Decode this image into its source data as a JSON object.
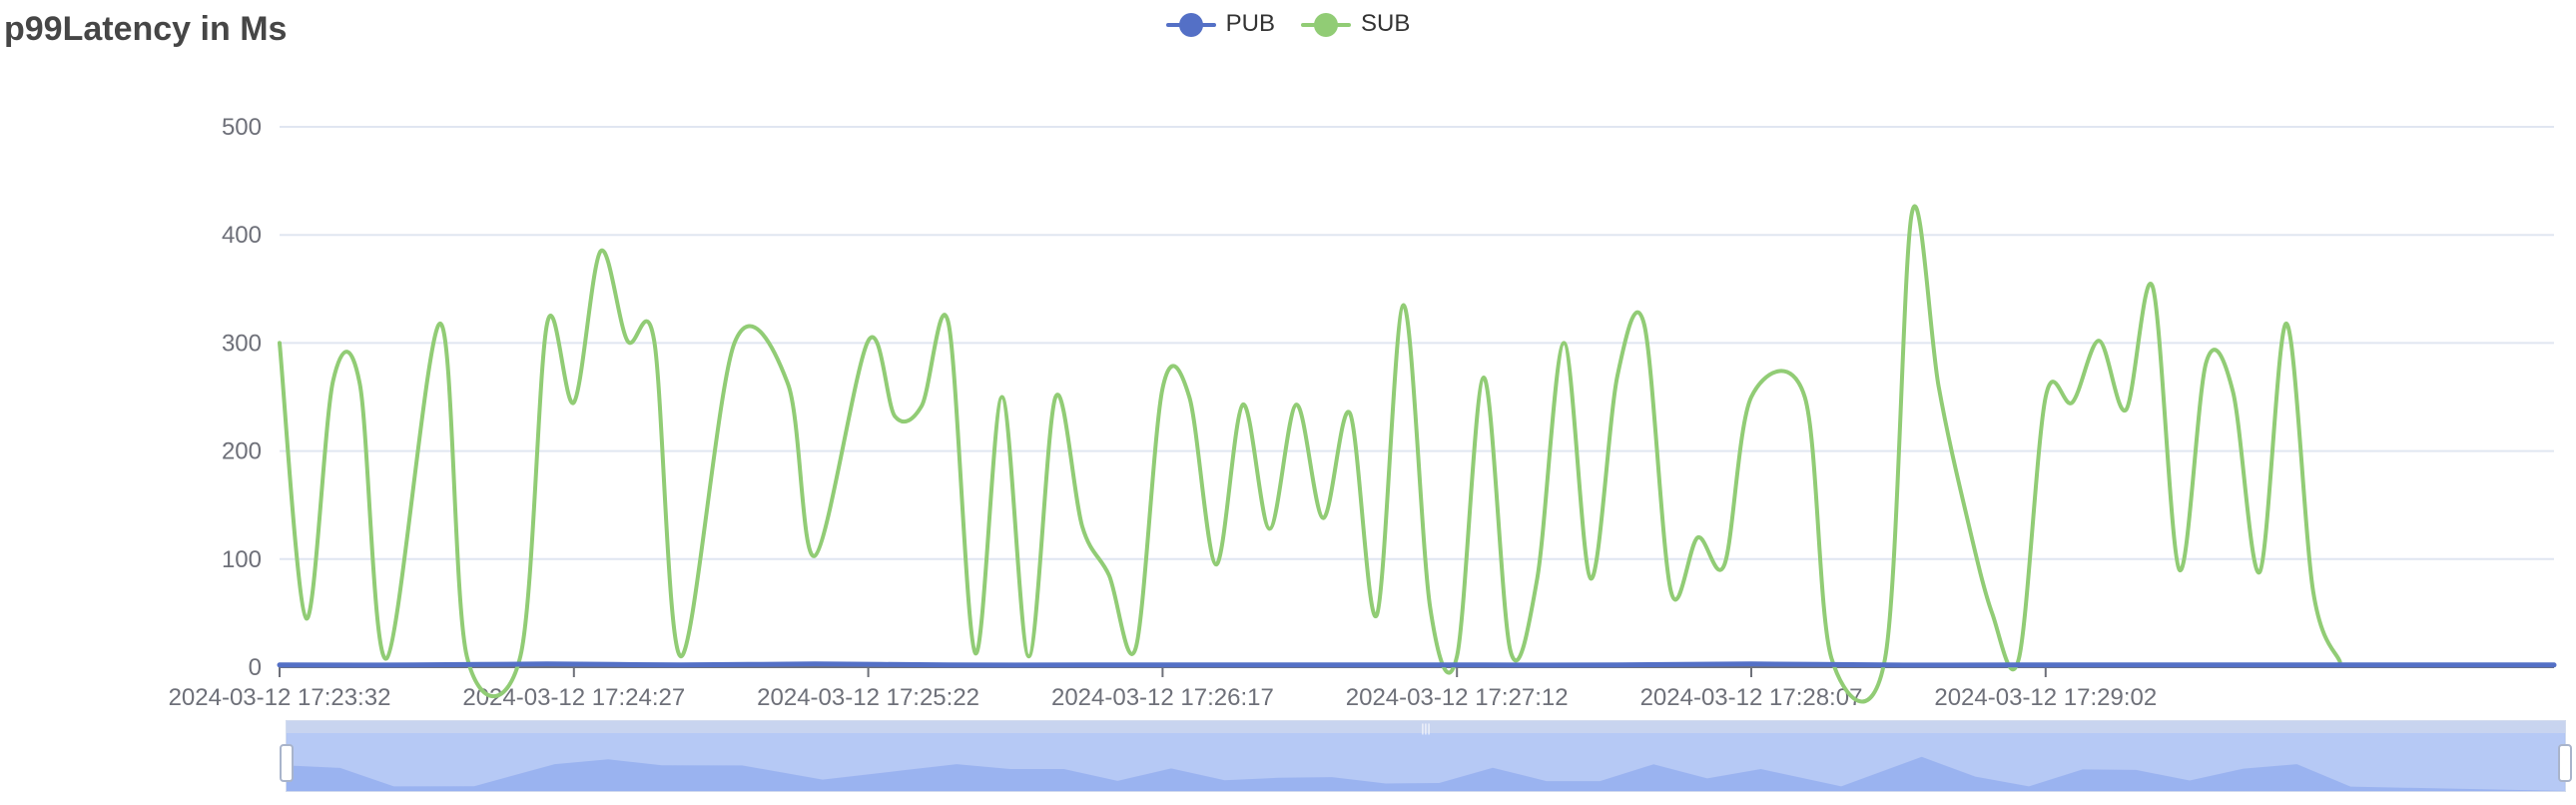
{
  "chart_data": {
    "type": "line",
    "title": "p99Latency in Ms",
    "xlabel": "",
    "ylabel": "",
    "ylim": [
      0,
      500
    ],
    "yticks": [
      0,
      100,
      200,
      300,
      400,
      500
    ],
    "x_tick_labels": [
      "2024-03-12 17:23:32",
      "2024-03-12 17:24:27",
      "2024-03-12 17:25:22",
      "2024-03-12 17:26:17",
      "2024-03-12 17:27:12",
      "2024-03-12 17:28:07",
      "2024-03-12 17:29:02"
    ],
    "x_range_seconds": [
      0,
      425
    ],
    "x_tick_interval_seconds": 55,
    "grid": true,
    "legend_position": "top-center",
    "data_zoom_slider": true,
    "series": [
      {
        "name": "PUB",
        "color": "#5470c6",
        "points": [
          [
            0,
            2
          ],
          [
            25,
            2
          ],
          [
            50,
            3
          ],
          [
            75,
            2
          ],
          [
            100,
            3
          ],
          [
            125,
            2
          ],
          [
            150,
            2
          ],
          [
            175,
            2
          ],
          [
            200,
            2
          ],
          [
            225,
            2
          ],
          [
            250,
            2
          ],
          [
            275,
            3
          ],
          [
            300,
            2
          ],
          [
            325,
            2
          ],
          [
            350,
            2
          ],
          [
            375,
            2
          ],
          [
            400,
            2
          ],
          [
            425,
            2
          ]
        ]
      },
      {
        "name": "SUB",
        "color": "#91cc75",
        "points": [
          [
            0,
            300
          ],
          [
            5,
            45
          ],
          [
            10,
            265
          ],
          [
            15,
            262
          ],
          [
            20,
            8
          ],
          [
            30,
            318
          ],
          [
            35,
            10
          ],
          [
            45,
            10
          ],
          [
            50,
            318
          ],
          [
            55,
            245
          ],
          [
            60,
            385
          ],
          [
            65,
            302
          ],
          [
            70,
            302
          ],
          [
            75,
            10
          ],
          [
            85,
            300
          ],
          [
            95,
            262
          ],
          [
            100,
            103
          ],
          [
            110,
            302
          ],
          [
            115,
            232
          ],
          [
            120,
            242
          ],
          [
            125,
            318
          ],
          [
            130,
            13
          ],
          [
            135,
            250
          ],
          [
            140,
            10
          ],
          [
            145,
            250
          ],
          [
            150,
            130
          ],
          [
            155,
            85
          ],
          [
            160,
            18
          ],
          [
            165,
            258
          ],
          [
            170,
            250
          ],
          [
            175,
            95
          ],
          [
            180,
            243
          ],
          [
            185,
            128
          ],
          [
            190,
            243
          ],
          [
            195,
            138
          ],
          [
            200,
            235
          ],
          [
            205,
            48
          ],
          [
            210,
            335
          ],
          [
            215,
            55
          ],
          [
            220,
            10
          ],
          [
            225,
            268
          ],
          [
            230,
            15
          ],
          [
            235,
            82
          ],
          [
            240,
            300
          ],
          [
            245,
            82
          ],
          [
            250,
            270
          ],
          [
            255,
            317
          ],
          [
            260,
            70
          ],
          [
            265,
            120
          ],
          [
            270,
            95
          ],
          [
            275,
            250
          ],
          [
            285,
            250
          ],
          [
            290,
            8
          ],
          [
            300,
            8
          ],
          [
            305,
            420
          ],
          [
            310,
            260
          ],
          [
            315,
            145
          ],
          [
            320,
            50
          ],
          [
            325,
            8
          ],
          [
            330,
            250
          ],
          [
            335,
            245
          ],
          [
            340,
            302
          ],
          [
            345,
            238
          ],
          [
            350,
            352
          ],
          [
            355,
            90
          ],
          [
            360,
            282
          ],
          [
            365,
            255
          ],
          [
            370,
            88
          ],
          [
            375,
            318
          ],
          [
            380,
            70
          ],
          [
            385,
            5
          ]
        ]
      }
    ]
  }
}
